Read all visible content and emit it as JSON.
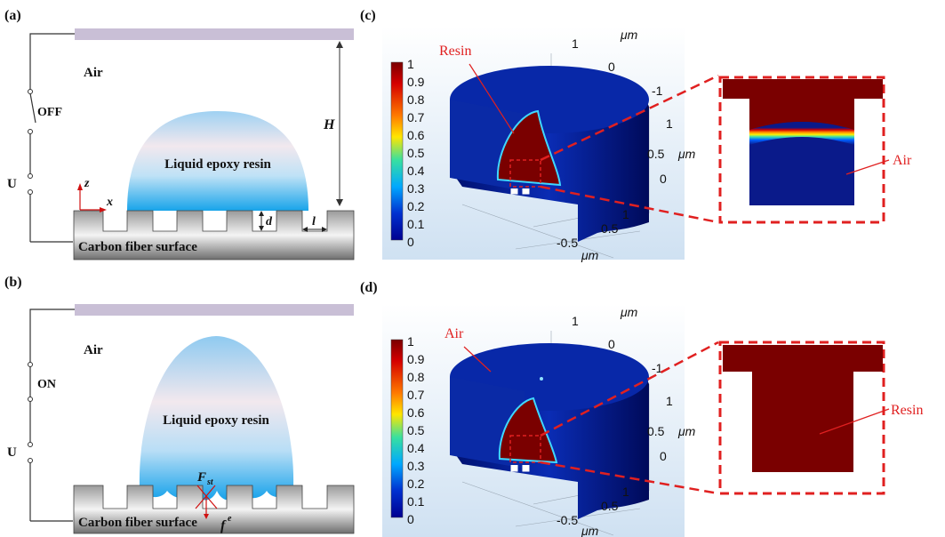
{
  "panel_a": {
    "tag": "(a)",
    "air": "Air",
    "switch_state": "OFF",
    "source": "U",
    "height_symbol": "H",
    "droplet": "Liquid epoxy resin",
    "axis_z": "z",
    "axis_x": "x",
    "depth_symbol": "d",
    "width_symbol": "l",
    "substrate": "Carbon fiber surface"
  },
  "panel_b": {
    "tag": "(b)",
    "air": "Air",
    "switch_state": "ON",
    "source": "U",
    "droplet": "Liquid epoxy resin",
    "force_st": "F",
    "force_st_sub": "st",
    "force_e": "f",
    "force_e_sup": "e",
    "substrate": "Carbon fiber surface"
  },
  "panel_c": {
    "tag": "(c)",
    "colorbar": [
      "1",
      "0.9",
      "0.8",
      "0.7",
      "0.6",
      "0.5",
      "0.4",
      "0.3",
      "0.2",
      "0.1",
      "0"
    ],
    "x_ticks": [
      "1",
      "0"
    ],
    "x_unit": "μm",
    "y_ticks": [
      "-1",
      "1",
      "0.5",
      "0"
    ],
    "y_unit": "μm",
    "depth_ticks": [
      "1",
      "0.5",
      "-0.5"
    ],
    "depth_unit": "μm",
    "callout": "Resin",
    "zoom_callout": "Air"
  },
  "panel_d": {
    "tag": "(d)",
    "colorbar": [
      "1",
      "0.9",
      "0.8",
      "0.7",
      "0.6",
      "0.5",
      "0.4",
      "0.3",
      "0.2",
      "0.1",
      "0"
    ],
    "x_ticks": [
      "1",
      "0"
    ],
    "x_unit": "μm",
    "y_ticks": [
      "-1",
      "1",
      "0.5",
      "0"
    ],
    "y_unit": "μm",
    "depth_ticks": [
      "1",
      "0.5",
      "-0.5"
    ],
    "depth_unit": "μm",
    "callout": "Air",
    "zoom_callout": "Resin"
  },
  "colors": {
    "electrode": "#c9bfd6",
    "resin_top": "#f2e8ee",
    "resin_bottom": "#2aa8ea",
    "fiber": "#8c8c8c",
    "field_low": "#00008f",
    "field_high": "#7a0000",
    "callout_line": "#e02020"
  }
}
